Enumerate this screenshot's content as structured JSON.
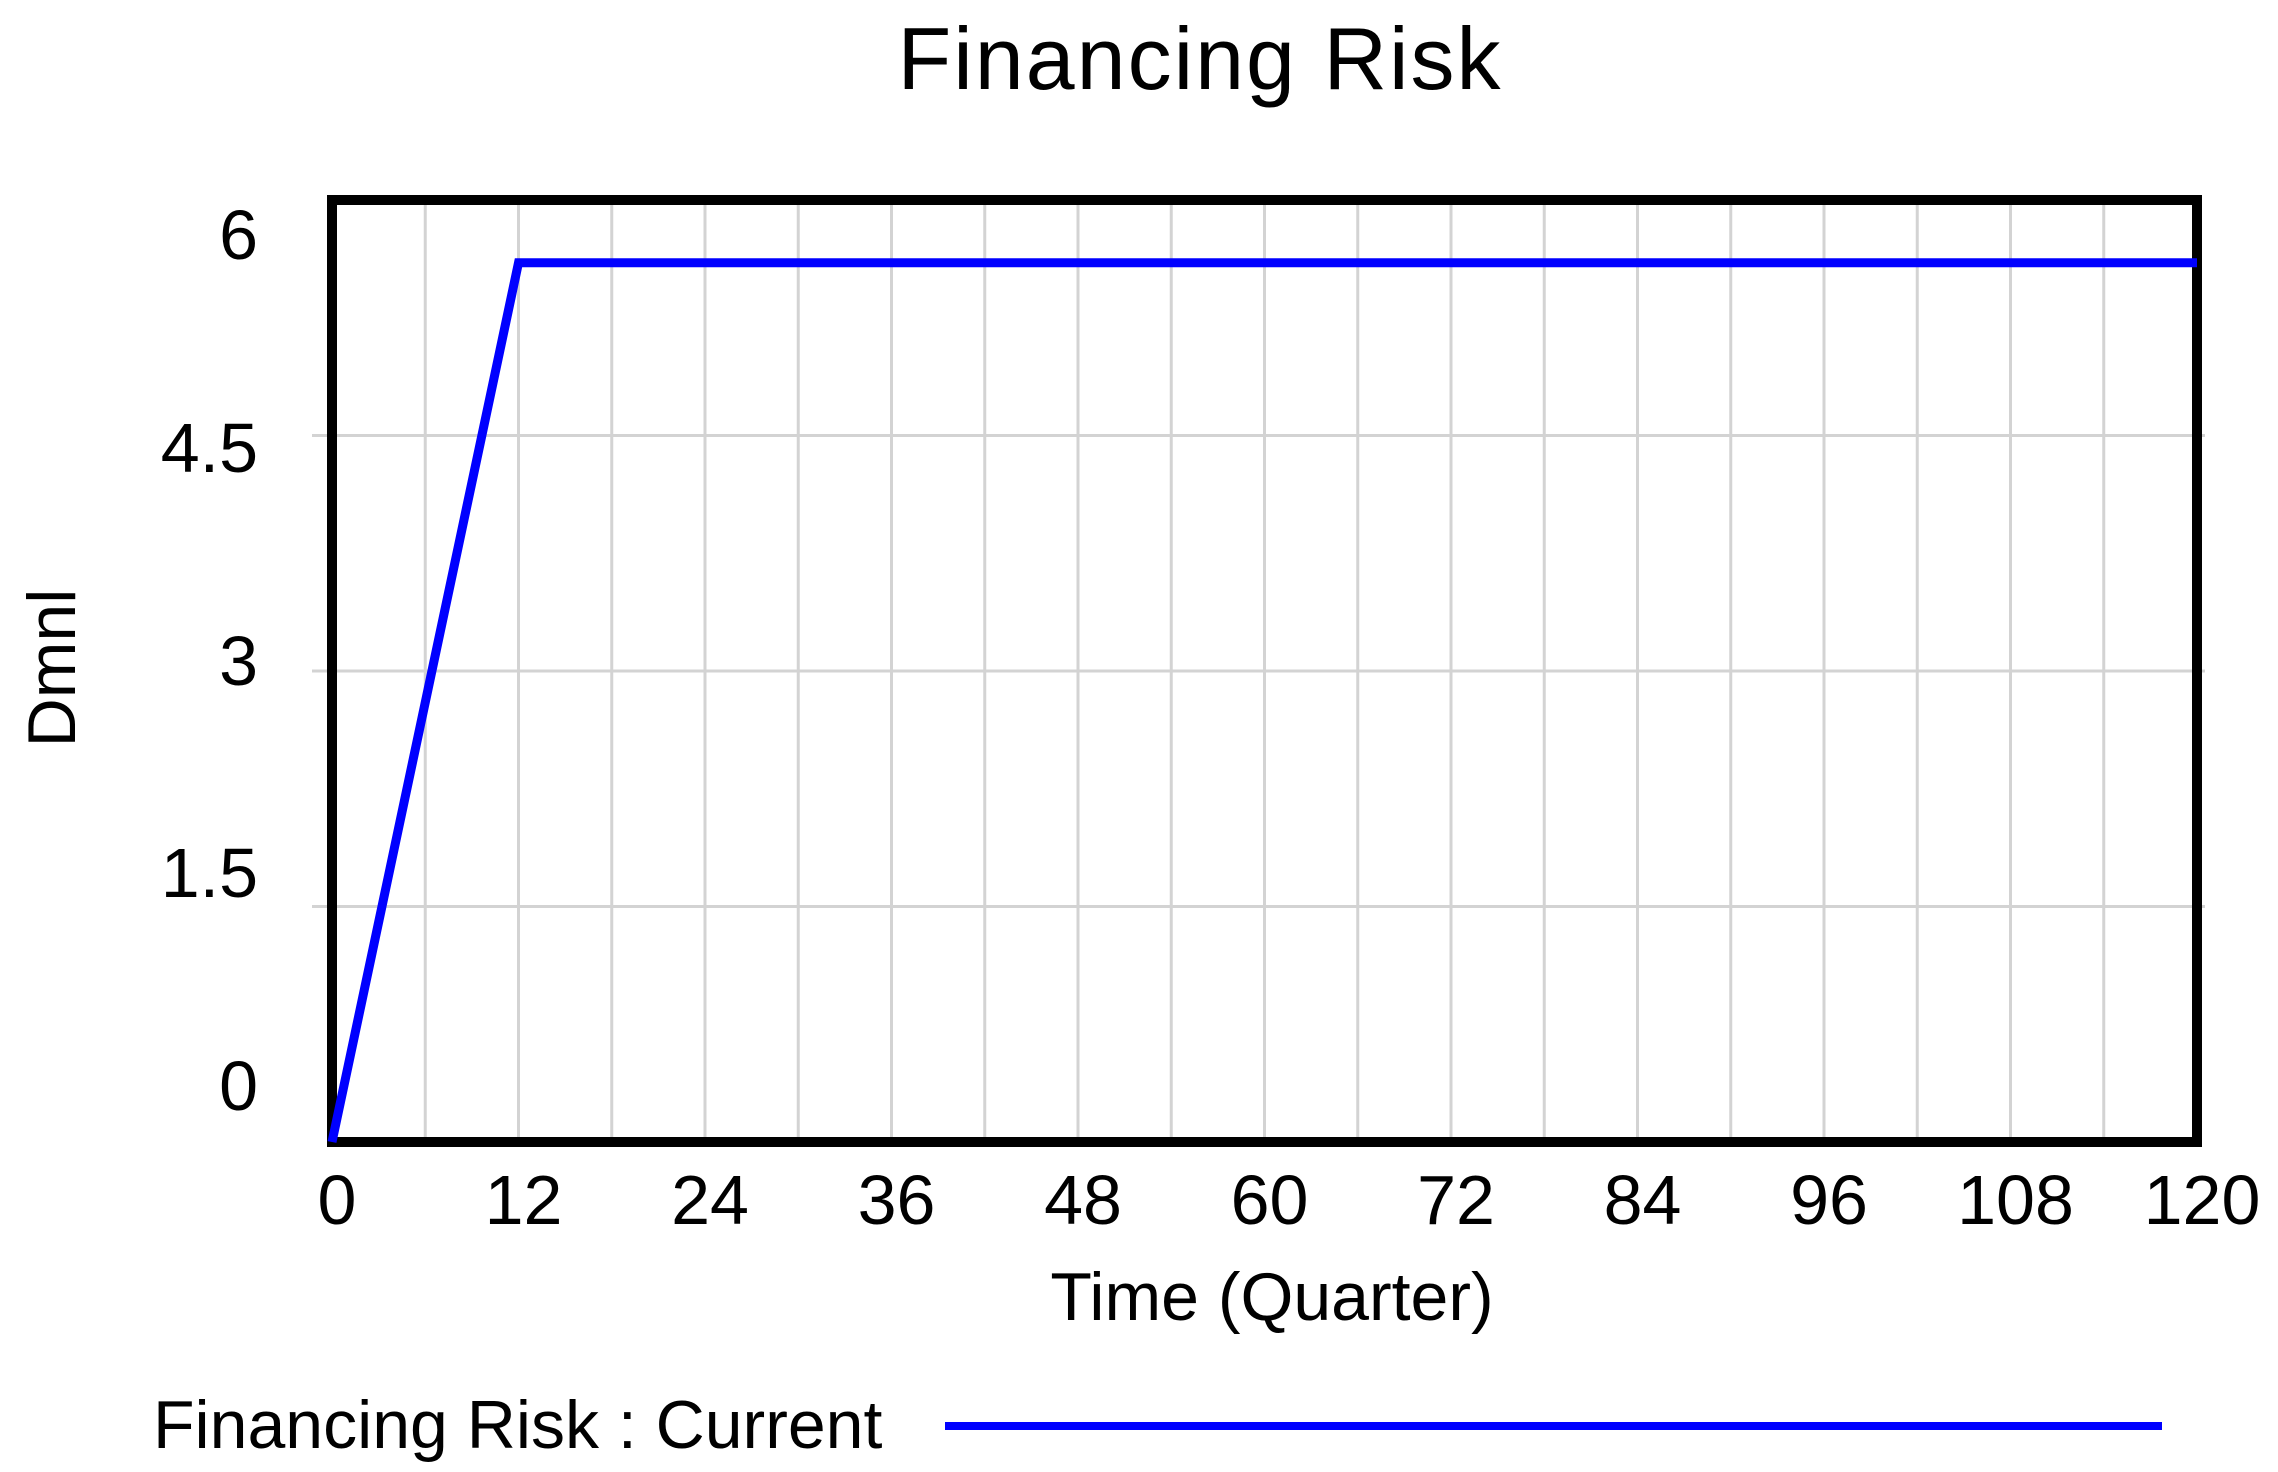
{
  "window": {
    "background": "#FFFFFF"
  },
  "chart_data": {
    "type": "line",
    "title": "Financing Risk",
    "xlabel": "Time (Quarter)",
    "ylabel": "Dmnl",
    "xlim": [
      0,
      120
    ],
    "ylim": [
      0,
      6
    ],
    "xticks": [
      0,
      12,
      24,
      36,
      48,
      60,
      72,
      84,
      96,
      108,
      120
    ],
    "yticks": [
      0,
      1.5,
      3,
      4.5,
      6
    ],
    "grid": {
      "show": true,
      "x_minor_step": 6,
      "color": "#D3D3D3"
    },
    "frame_color": "#000000",
    "series": [
      {
        "name": "Financing Risk : Current",
        "color": "#0000FF",
        "points": [
          [
            0,
            0
          ],
          [
            12,
            5.6
          ],
          [
            120,
            5.6
          ]
        ]
      }
    ],
    "legend": {
      "position": "bottom-left",
      "entries": [
        {
          "label": "Financing Risk : Current",
          "color": "#0000FF"
        }
      ]
    }
  }
}
